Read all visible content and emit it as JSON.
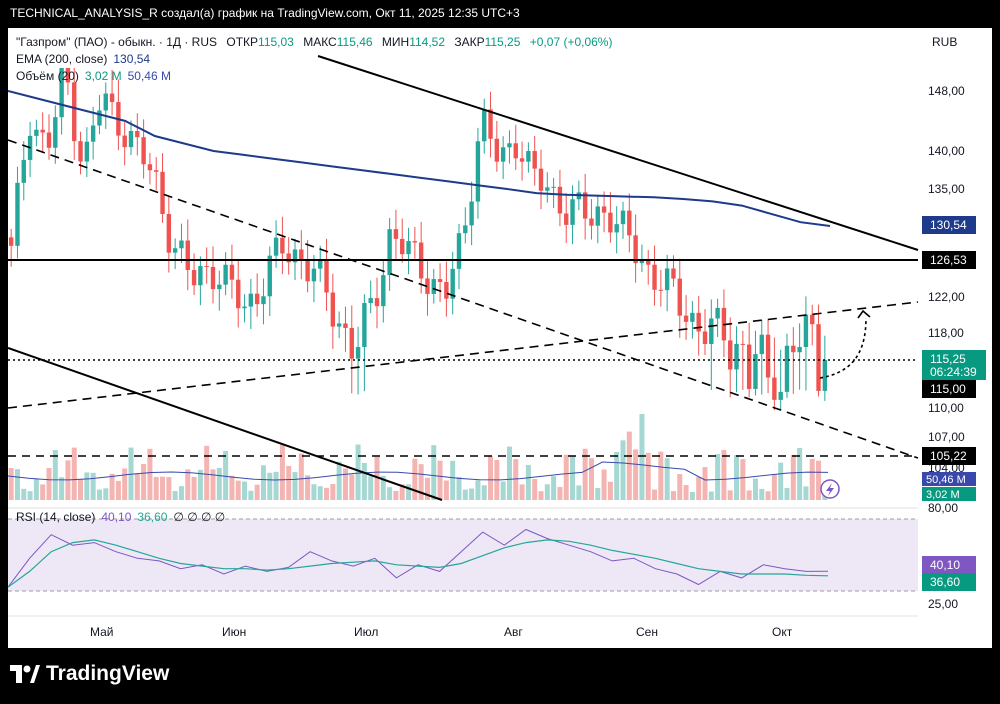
{
  "caption": "TECHNICAL_ANALYSIS_R создал(а) график на TradingView.com, Окт 11, 2025 12:35 UTC+3",
  "legend": {
    "symbol": "\"Газпром\" (ПАО) - обыкн. · 1Д · RUS",
    "open_label": "ОТКР",
    "open": "115,03",
    "high_label": "МАКС",
    "high": "115,46",
    "low_label": "МИН",
    "low": "114,52",
    "close_label": "ЗАКР",
    "close": "115,25",
    "change": "+0,07 (+0,06%)",
    "ema_label": "EMA (200, close)",
    "ema_value": "130,54",
    "vol_label": "Объём (20)",
    "vol_value1": "3,02 M",
    "vol_value2": "50,46 M",
    "rsi_label": "RSI (14, close)",
    "rsi_value1": "40,10",
    "rsi_value2": "36,60",
    "rsi_empty": "∅ ∅ ∅ ∅",
    "currency": "RUB"
  },
  "price_axis": {
    "ticks": [
      "148,00",
      "140,00",
      "135,00",
      "122,00",
      "118,00",
      "110,00",
      "107,00",
      "104,00"
    ],
    "tick_values": [
      148,
      140,
      135,
      122,
      118,
      110,
      107,
      104
    ],
    "labels": {
      "ema": "130,54",
      "resistance": "126,53",
      "last": "115,25",
      "timer": "06:24:39",
      "support": "115,00",
      "low_line": "105,22",
      "vol1": "50,46 M",
      "vol2": "3,02 M",
      "rsi1": "40,10",
      "rsi2": "36,60",
      "rsi_top": "80,00",
      "rsi_bottom": "25,00"
    }
  },
  "time_axis": [
    "Май",
    "Июн",
    "Июл",
    "Авг",
    "Сен",
    "Окт"
  ],
  "colors": {
    "up": "#26a69a",
    "down": "#ef5350",
    "ema": "#1e3a8a",
    "rsi": "#7e57c2",
    "rsi_ma": "#26a69a",
    "rsi_band": "#ede7f6",
    "level_box": "#000000"
  },
  "chart_data": {
    "type": "candlestick",
    "x_axis": "date",
    "y_axis": "price, RUB",
    "ema_200": [
      148,
      147,
      146,
      145,
      144,
      142,
      141,
      140,
      139.5,
      139,
      138.5,
      138,
      137.5,
      137,
      136.5,
      136,
      135.5,
      135,
      134.5,
      134.3,
      134.2,
      134.1,
      134,
      133.8,
      133.5,
      133,
      132,
      131,
      130.54
    ],
    "price_path": [
      127,
      145,
      140,
      150,
      138,
      147,
      144,
      140,
      136,
      128,
      124,
      126,
      123,
      121,
      124,
      128,
      127,
      124,
      120,
      116,
      121,
      130,
      127,
      125,
      122,
      129,
      145,
      138,
      142,
      136,
      134,
      133,
      131,
      133,
      129,
      126,
      124,
      121,
      119,
      118,
      117,
      116,
      114,
      116,
      118,
      115.25
    ],
    "levels": [
      126.53,
      115.0,
      105.22
    ],
    "volume_ma": 50.46,
    "last_volume": 3.02,
    "rsi": [
      28,
      50,
      68,
      60,
      62,
      55,
      50,
      48,
      42,
      45,
      38,
      44,
      40,
      43,
      55,
      48,
      44,
      50,
      35,
      45,
      40,
      55,
      70,
      60,
      72,
      65,
      60,
      55,
      48,
      50,
      42,
      38,
      30,
      40,
      35,
      45,
      42,
      40,
      40.1
    ],
    "rsi_ma": [
      28,
      40,
      55,
      62,
      64,
      60,
      55,
      50,
      46,
      44,
      42,
      42,
      41,
      42,
      44,
      46,
      47,
      48,
      45,
      44,
      43,
      46,
      52,
      58,
      62,
      64,
      63,
      60,
      56,
      53,
      50,
      46,
      42,
      40,
      38,
      38,
      38,
      37,
      36.6
    ]
  }
}
